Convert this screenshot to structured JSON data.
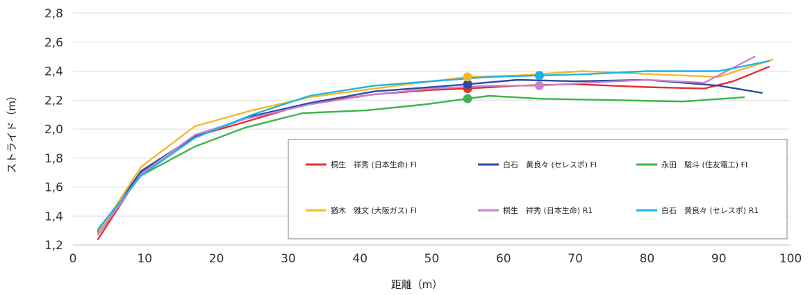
{
  "chart_data": {
    "type": "line",
    "xlabel": "距離（m）",
    "ylabel": "ストライド（m）",
    "xlim": [
      0,
      100
    ],
    "ylim": [
      1.2,
      2.8
    ],
    "x_ticks": [
      "0",
      "10",
      "20",
      "30",
      "40",
      "50",
      "60",
      "70",
      "80",
      "90",
      "100"
    ],
    "y_ticks": [
      "1,2",
      "1,4",
      "1,6",
      "1,8",
      "2,0",
      "2,2",
      "2,4",
      "2,6",
      "2,8"
    ],
    "grid": "horizontal",
    "legend_position": "bottom-right",
    "series": [
      {
        "name": "桐生　祥秀 (日本生命) FI",
        "color": "#e0312f",
        "x": [
          3.5,
          9.5,
          17,
          24,
          33,
          42,
          50,
          55,
          62,
          70,
          80,
          88,
          92,
          97
        ],
        "y": [
          1.24,
          1.7,
          1.95,
          2.05,
          2.18,
          2.24,
          2.27,
          2.28,
          2.3,
          2.31,
          2.29,
          2.28,
          2.33,
          2.43
        ],
        "markers": [
          {
            "x": 55,
            "y": 2.28
          }
        ]
      },
      {
        "name": "白石　黄良々 (セレスポ) FI",
        "color": "#2b4ba6",
        "x": [
          3.5,
          9.5,
          17,
          25,
          33,
          42,
          50,
          55,
          62,
          70,
          80,
          90,
          96
        ],
        "y": [
          1.29,
          1.71,
          1.95,
          2.09,
          2.18,
          2.26,
          2.29,
          2.31,
          2.34,
          2.33,
          2.34,
          2.3,
          2.25
        ],
        "markers": [
          {
            "x": 55,
            "y": 2.31
          }
        ]
      },
      {
        "name": "永田　駿斗 (住友電工) FI",
        "color": "#3cb54a",
        "x": [
          3.5,
          9.5,
          17,
          24,
          32,
          41,
          49,
          55,
          58,
          65,
          75,
          85,
          93.5
        ],
        "y": [
          1.3,
          1.68,
          1.88,
          2.01,
          2.11,
          2.13,
          2.17,
          2.21,
          2.23,
          2.21,
          2.2,
          2.19,
          2.22
        ],
        "markers": [
          {
            "x": 55,
            "y": 2.21
          }
        ]
      },
      {
        "name": "猶木　雅文 (大阪ガス) FI",
        "color": "#f5b829",
        "x": [
          3.5,
          9.5,
          17,
          25,
          33,
          42,
          50,
          55,
          62,
          71,
          80,
          90,
          97.5
        ],
        "y": [
          1.28,
          1.74,
          2.02,
          2.13,
          2.22,
          2.28,
          2.33,
          2.36,
          2.37,
          2.4,
          2.38,
          2.36,
          2.48
        ],
        "markers": [
          {
            "x": 55,
            "y": 2.36
          }
        ]
      },
      {
        "name": "桐生　祥秀 (日本生命) R1",
        "color": "#c983d6",
        "x": [
          3.5,
          9.5,
          17,
          24,
          33,
          42,
          50,
          58,
          65,
          72,
          80,
          88,
          95
        ],
        "y": [
          1.27,
          1.69,
          1.96,
          2.07,
          2.17,
          2.24,
          2.28,
          2.3,
          2.3,
          2.32,
          2.34,
          2.32,
          2.5
        ],
        "markers": [
          {
            "x": 65,
            "y": 2.3
          }
        ]
      },
      {
        "name": "白石　黄良々 (セレスポ) R1",
        "color": "#1fb3e0",
        "x": [
          3.5,
          9.5,
          17,
          25,
          33,
          42,
          50,
          58,
          65,
          72,
          80,
          90,
          97
        ],
        "y": [
          1.31,
          1.68,
          1.94,
          2.1,
          2.23,
          2.3,
          2.33,
          2.36,
          2.37,
          2.38,
          2.4,
          2.4,
          2.47
        ],
        "markers": [
          {
            "x": 65,
            "y": 2.37
          }
        ]
      }
    ]
  }
}
